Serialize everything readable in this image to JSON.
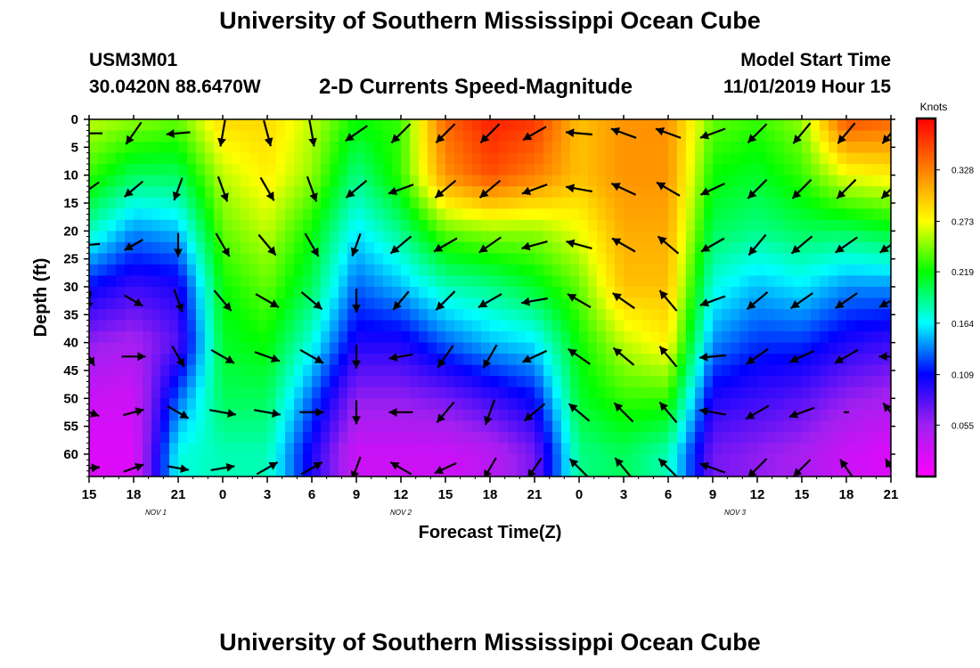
{
  "header": {
    "title": "University of Southern Mississippi Ocean Cube",
    "station_id": "USM3M01",
    "station_coords": "30.0420N 88.6470W",
    "model_start_label": "Model Start Time",
    "model_start_value": "11/01/2019 Hour 15"
  },
  "footer": {
    "title": "University of Southern Mississippi Ocean Cube"
  },
  "chart_data": {
    "type": "heatmap",
    "title": "2-D Currents Speed-Magnitude",
    "xlabel": "Forecast Time(Z)",
    "ylabel": "Depth (ft)",
    "colorbar_label": "Knots",
    "colorbar_ticks": [
      "0.328",
      "0.273",
      "0.219",
      "0.164",
      "0.109",
      "0.055"
    ],
    "colorbar_tick_values": [
      0.328,
      0.273,
      0.219,
      0.164,
      0.109,
      0.055
    ],
    "colorbar_range": [
      0.0,
      0.383
    ],
    "x_tick_labels": [
      "15",
      "18",
      "21",
      "0",
      "3",
      "6",
      "9",
      "12",
      "15",
      "18",
      "21",
      "0",
      "3",
      "6",
      "9",
      "12",
      "15",
      "18",
      "21"
    ],
    "x_range_hours": [
      0,
      54
    ],
    "date_labels": [
      {
        "label": "NOV 1",
        "hour": 4.5
      },
      {
        "label": "NOV 2",
        "hour": 21
      },
      {
        "label": "NOV 3",
        "hour": 43.5
      }
    ],
    "y_tick_labels": [
      "0",
      "5",
      "10",
      "15",
      "20",
      "25",
      "30",
      "35",
      "40",
      "45",
      "50",
      "55",
      "60"
    ],
    "y_ticks": [
      0,
      5,
      10,
      15,
      20,
      25,
      30,
      35,
      40,
      45,
      50,
      55,
      60
    ],
    "y_range": [
      0,
      64
    ],
    "y_inverted": true,
    "speed_grid": {
      "hours": [
        0,
        3,
        6,
        9,
        12,
        15,
        18,
        21,
        24,
        27,
        30,
        33,
        36,
        39,
        42,
        45,
        48,
        51,
        54
      ],
      "depths": [
        0,
        10,
        20,
        30,
        40,
        50,
        60
      ],
      "values": [
        [
          0.26,
          0.23,
          0.18,
          0.11,
          0.06,
          0.03,
          0.02
        ],
        [
          0.25,
          0.2,
          0.14,
          0.09,
          0.05,
          0.03,
          0.02
        ],
        [
          0.24,
          0.2,
          0.15,
          0.1,
          0.08,
          0.13,
          0.17
        ],
        [
          0.29,
          0.26,
          0.24,
          0.22,
          0.21,
          0.2,
          0.18
        ],
        [
          0.29,
          0.28,
          0.26,
          0.24,
          0.22,
          0.2,
          0.18
        ],
        [
          0.26,
          0.25,
          0.22,
          0.2,
          0.17,
          0.13,
          0.1
        ],
        [
          0.22,
          0.19,
          0.16,
          0.13,
          0.1,
          0.06,
          0.03
        ],
        [
          0.23,
          0.23,
          0.19,
          0.15,
          0.1,
          0.06,
          0.03
        ],
        [
          0.34,
          0.32,
          0.24,
          0.18,
          0.13,
          0.07,
          0.03
        ],
        [
          0.37,
          0.35,
          0.25,
          0.19,
          0.15,
          0.09,
          0.04
        ],
        [
          0.36,
          0.33,
          0.25,
          0.21,
          0.16,
          0.11,
          0.07
        ],
        [
          0.3,
          0.3,
          0.27,
          0.24,
          0.22,
          0.21,
          0.19
        ],
        [
          0.32,
          0.32,
          0.31,
          0.3,
          0.26,
          0.23,
          0.2
        ],
        [
          0.32,
          0.32,
          0.31,
          0.3,
          0.28,
          0.23,
          0.18
        ],
        [
          0.24,
          0.22,
          0.2,
          0.17,
          0.14,
          0.1,
          0.07
        ],
        [
          0.23,
          0.21,
          0.19,
          0.15,
          0.12,
          0.09,
          0.06
        ],
        [
          0.25,
          0.23,
          0.2,
          0.16,
          0.12,
          0.08,
          0.05
        ],
        [
          0.35,
          0.27,
          0.2,
          0.14,
          0.1,
          0.06,
          0.03
        ],
        [
          0.34,
          0.28,
          0.21,
          0.14,
          0.09,
          0.05,
          0.02
        ]
      ]
    },
    "current_vectors": {
      "hours": [
        0,
        3,
        6,
        9,
        12,
        15,
        18,
        21,
        24,
        27,
        30,
        33,
        36,
        39,
        42,
        45,
        48,
        51,
        54
      ],
      "depths": [
        2.5,
        12.5,
        22.5,
        32.5,
        42.5,
        52.5,
        62.5
      ],
      "angles_deg": [
        [
          270,
          235,
          265,
          190,
          150,
          110,
          85
        ],
        [
          215,
          230,
          240,
          120,
          90,
          75,
          70
        ],
        [
          265,
          200,
          180,
          160,
          150,
          120,
          100
        ],
        [
          190,
          160,
          150,
          140,
          120,
          100,
          80
        ],
        [
          165,
          150,
          140,
          120,
          110,
          100,
          60
        ],
        [
          170,
          160,
          150,
          130,
          120,
          90,
          60
        ],
        [
          235,
          230,
          200,
          180,
          180,
          180,
          200
        ],
        [
          225,
          250,
          230,
          220,
          260,
          270,
          300
        ],
        [
          225,
          230,
          240,
          225,
          215,
          220,
          245
        ],
        [
          225,
          230,
          235,
          240,
          210,
          200,
          210
        ],
        [
          240,
          250,
          255,
          260,
          245,
          230,
          215
        ],
        [
          275,
          280,
          285,
          300,
          305,
          310,
          315
        ],
        [
          290,
          295,
          300,
          305,
          310,
          315,
          320
        ],
        [
          290,
          300,
          310,
          320,
          320,
          320,
          315
        ],
        [
          250,
          245,
          240,
          250,
          265,
          280,
          290
        ],
        [
          225,
          225,
          220,
          230,
          235,
          240,
          225
        ],
        [
          220,
          225,
          230,
          235,
          245,
          250,
          225
        ],
        [
          220,
          225,
          235,
          235,
          240,
          270,
          325
        ],
        [
          220,
          225,
          235,
          240,
          270,
          320,
          330
        ]
      ],
      "strengths": [
        [
          1.0,
          0.9,
          0.8,
          0.7,
          0.8,
          0.8,
          0.8
        ],
        [
          1.0,
          0.9,
          0.8,
          0.8,
          0.9,
          0.8,
          0.8
        ],
        [
          0.9,
          0.9,
          0.9,
          0.9,
          0.9,
          0.9,
          0.8
        ],
        [
          1.0,
          1.0,
          1.0,
          1.0,
          1.0,
          1.0,
          0.9
        ],
        [
          1.0,
          1.0,
          1.0,
          1.0,
          1.0,
          1.0,
          0.9
        ],
        [
          1.0,
          1.0,
          1.0,
          1.0,
          1.0,
          0.9,
          0.9
        ],
        [
          1.0,
          1.0,
          0.9,
          0.9,
          0.9,
          0.9,
          0.9
        ],
        [
          1.0,
          1.0,
          1.0,
          0.9,
          0.9,
          0.9,
          0.9
        ],
        [
          1.0,
          1.0,
          1.0,
          1.0,
          1.0,
          1.0,
          0.9
        ],
        [
          1.0,
          1.0,
          1.0,
          1.0,
          1.0,
          1.0,
          0.9
        ],
        [
          1.0,
          1.0,
          1.0,
          1.0,
          1.0,
          1.0,
          0.9
        ],
        [
          1.0,
          1.0,
          1.0,
          1.0,
          1.0,
          1.0,
          1.0
        ],
        [
          1.0,
          1.0,
          1.0,
          1.0,
          1.0,
          1.0,
          1.0
        ],
        [
          1.0,
          1.0,
          1.0,
          1.0,
          1.0,
          1.0,
          1.0
        ],
        [
          1.0,
          1.0,
          1.0,
          1.0,
          1.0,
          1.0,
          1.0
        ],
        [
          1.0,
          1.0,
          1.0,
          1.0,
          1.0,
          1.0,
          1.0
        ],
        [
          1.0,
          1.0,
          1.0,
          1.0,
          1.0,
          1.0,
          0.9
        ],
        [
          1.0,
          1.0,
          1.0,
          1.0,
          1.0,
          0.2,
          0.8
        ],
        [
          1.0,
          1.0,
          1.0,
          1.0,
          0.9,
          0.9,
          0.8
        ]
      ]
    },
    "palette": [
      "#ff00ff",
      "#a020f0",
      "#0000ff",
      "#00ffff",
      "#00ff00",
      "#ffff00",
      "#ff8000",
      "#ff0000"
    ]
  }
}
